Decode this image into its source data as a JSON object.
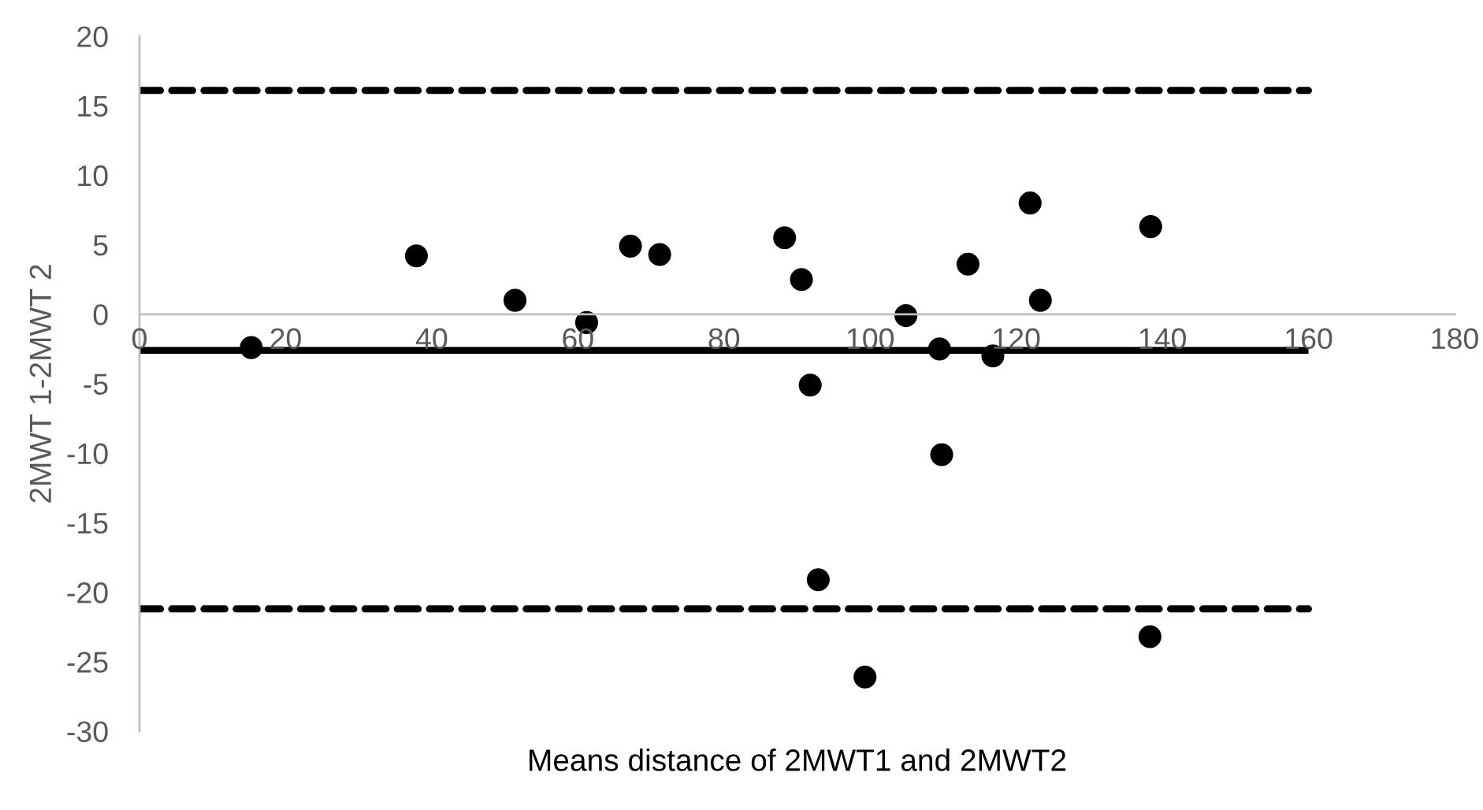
{
  "chart_data": {
    "type": "scatter",
    "xlabel": "Means distance of 2MWT1 and 2MWT2",
    "ylabel": "2MWT 1-2MWT 2",
    "xlim": [
      0,
      180
    ],
    "xticks": [
      0,
      20,
      40,
      60,
      80,
      100,
      120,
      140,
      160,
      180
    ],
    "ylim": [
      -30,
      20
    ],
    "yticks": [
      -30,
      -25,
      -20,
      -15,
      -10,
      -5,
      0,
      5,
      10,
      15,
      20
    ],
    "series": [
      {
        "color": "#000000",
        "marker": "circle",
        "x": [
          15.3,
          37.9,
          51.4,
          61.2,
          67.2,
          71.2,
          88.3,
          90.6,
          91.8,
          92.9,
          99.3,
          104.9,
          109.5,
          109.8,
          113.4,
          116.8,
          121.9,
          123.3,
          138.4,
          138.3
        ],
        "values": [
          -2.4,
          4.2,
          1.0,
          -0.6,
          4.9,
          4.3,
          5.5,
          2.5,
          -5.1,
          -19.1,
          -26.1,
          -0.1,
          -2.5,
          -10.1,
          3.6,
          -3.0,
          8.0,
          1.0,
          6.3,
          -23.2
        ]
      },
      {
        "type": "line",
        "color": "#000000",
        "line_style": "solid",
        "x": [
          0,
          160
        ],
        "values": [
          -2.6,
          -2.6
        ]
      },
      {
        "type": "line",
        "color": "#000000",
        "line_style": "dashed",
        "x": [
          0,
          160
        ],
        "values": [
          16.1,
          16.1
        ]
      },
      {
        "type": "line",
        "color": "#000000",
        "line_style": "dashed",
        "x": [
          0,
          160
        ],
        "values": [
          -21.2,
          -21.2
        ]
      }
    ]
  }
}
